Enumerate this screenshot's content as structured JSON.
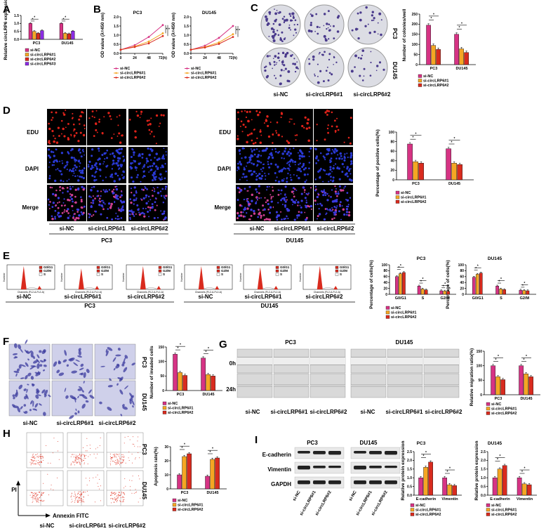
{
  "panels": {
    "a": "A",
    "b": "B",
    "c": "C",
    "d": "D",
    "e": "E",
    "f": "F",
    "g": "G",
    "h": "H",
    "i": "I"
  },
  "colors": {
    "si_nc": "#d63384",
    "si1": "#f5a623",
    "si2": "#d92b1e",
    "si3": "#8a2be2"
  },
  "legend": {
    "si_nc": "si-NC",
    "si1": "si-circLRP6#1",
    "si2": "si-circLRP6#2",
    "si3": "si-circLRP6#3"
  },
  "cells": {
    "pc3": "PC3",
    "du145": "DU145"
  },
  "stars": "*",
  "panel_a": {
    "ylabel": "Relative circLRP6\nexpression"
  },
  "panel_b": {
    "ylabel": "OD value (λ=450 nm)",
    "x_ticks": [
      "0",
      "24",
      "48",
      "72(h)"
    ]
  },
  "panel_c": {
    "ylabel": "Number of colonies/well"
  },
  "panel_d": {
    "rows": [
      "EDU",
      "DAPI",
      "Merge"
    ],
    "ylabel": "Percentage of positive cells(%)"
  },
  "panel_e": {
    "ylabel": "Percentage of cells(%)",
    "groups": [
      "G0/G1",
      "S",
      "G2/M"
    ],
    "flow_legend": [
      "G0/G1",
      "G2/M",
      "S"
    ],
    "xaxis_label": "Channels (FL2-A-FL2-A)",
    "yaxis_label": "Number"
  },
  "panel_f": {
    "ylabel": "Number of invaded cells"
  },
  "panel_g": {
    "times": [
      "0h",
      "24h"
    ],
    "ylabel": "Relative migration ratio(%)"
  },
  "panel_h": {
    "ylabel": "Apoptosis rate(%)",
    "pi": "PI",
    "annexin": "Annexin FITC"
  },
  "panel_i": {
    "proteins": [
      "E-cadherin",
      "Vimentin",
      "GAPDH"
    ],
    "ylabel": "Relative protein expression",
    "groups": [
      "E-cadherin",
      "Vimentin"
    ]
  },
  "chart_data": [
    {
      "id": "A",
      "type": "bar",
      "categories": [
        "PC3",
        "DU145"
      ],
      "ylim": [
        0,
        1.5
      ],
      "yticks": [
        "0.0",
        "0.5",
        "1.0",
        "1.5"
      ],
      "series": [
        {
          "name": "si-NC",
          "values": [
            1.0,
            1.0
          ]
        },
        {
          "name": "si-circLRP6#1",
          "values": [
            0.5,
            0.38
          ]
        },
        {
          "name": "si-circLRP6#2",
          "values": [
            0.38,
            0.35
          ]
        },
        {
          "name": "si-circLRP6#3",
          "values": [
            0.55,
            0.52
          ]
        }
      ]
    },
    {
      "id": "B-PC3",
      "type": "line",
      "title": "PC3",
      "x": [
        0,
        24,
        48,
        72
      ],
      "ylim": [
        0,
        2.0
      ],
      "yticks": [
        "0.0",
        "0.5",
        "1.0",
        "1.5",
        "2.0"
      ],
      "series": [
        {
          "name": "si-NC",
          "values": [
            0.2,
            0.45,
            0.9,
            1.55
          ]
        },
        {
          "name": "si-circLRP6#1",
          "values": [
            0.2,
            0.38,
            0.65,
            1.1
          ]
        },
        {
          "name": "si-circLRP6#2",
          "values": [
            0.2,
            0.35,
            0.55,
            0.95
          ]
        }
      ]
    },
    {
      "id": "B-DU145",
      "type": "line",
      "title": "DU145",
      "x": [
        0,
        24,
        48,
        72
      ],
      "ylim": [
        0,
        2.0
      ],
      "yticks": [
        "0.0",
        "0.5",
        "1.0",
        "1.5",
        "2.0"
      ],
      "series": [
        {
          "name": "si-NC",
          "values": [
            0.2,
            0.42,
            0.85,
            1.5
          ]
        },
        {
          "name": "si-circLRP6#1",
          "values": [
            0.2,
            0.35,
            0.6,
            1.05
          ]
        },
        {
          "name": "si-circLRP6#2",
          "values": [
            0.2,
            0.32,
            0.52,
            0.9
          ]
        }
      ]
    },
    {
      "id": "C",
      "type": "bar",
      "categories": [
        "PC3",
        "DU145"
      ],
      "ylim": [
        0,
        250
      ],
      "yticks": [
        "0",
        "50",
        "100",
        "150",
        "200",
        "250"
      ],
      "series": [
        {
          "name": "si-NC",
          "values": [
            195,
            150
          ]
        },
        {
          "name": "si-circLRP6#1",
          "values": [
            95,
            78
          ]
        },
        {
          "name": "si-circLRP6#2",
          "values": [
            75,
            60
          ]
        }
      ]
    },
    {
      "id": "D",
      "type": "bar",
      "categories": [
        "PC3",
        "DU145"
      ],
      "ylim": [
        0,
        100
      ],
      "yticks": [
        "0",
        "20",
        "40",
        "60",
        "80",
        "100"
      ],
      "series": [
        {
          "name": "si-NC",
          "values": [
            75,
            65
          ]
        },
        {
          "name": "si-circLRP6#1",
          "values": [
            38,
            35
          ]
        },
        {
          "name": "si-circLRP6#2",
          "values": [
            35,
            32
          ]
        }
      ]
    },
    {
      "id": "E-PC3",
      "type": "bar",
      "title": "PC3",
      "categories": [
        "G0/G1",
        "S",
        "G2/M"
      ],
      "ylim": [
        0,
        100
      ],
      "yticks": [
        "0",
        "20",
        "40",
        "60",
        "80",
        "100"
      ],
      "series": [
        {
          "name": "si-NC",
          "values": [
            60,
            28,
            12
          ]
        },
        {
          "name": "si-circLRP6#1",
          "values": [
            70,
            18,
            11
          ]
        },
        {
          "name": "si-circLRP6#2",
          "values": [
            74,
            15,
            10
          ]
        }
      ]
    },
    {
      "id": "E-DU145",
      "type": "bar",
      "title": "DU145",
      "categories": [
        "G0/G1",
        "S",
        "G2/M"
      ],
      "ylim": [
        0,
        100
      ],
      "yticks": [
        "0",
        "20",
        "40",
        "60",
        "80",
        "100"
      ],
      "series": [
        {
          "name": "si-NC",
          "values": [
            58,
            28,
            14
          ]
        },
        {
          "name": "si-circLRP6#1",
          "values": [
            68,
            18,
            13
          ]
        },
        {
          "name": "si-circLRP6#2",
          "values": [
            72,
            16,
            12
          ]
        }
      ]
    },
    {
      "id": "F",
      "type": "bar",
      "categories": [
        "PC3",
        "DU145"
      ],
      "ylim": [
        0,
        150
      ],
      "yticks": [
        "0",
        "50",
        "100",
        "150"
      ],
      "series": [
        {
          "name": "si-NC",
          "values": [
            125,
            112
          ]
        },
        {
          "name": "si-circLRP6#1",
          "values": [
            62,
            55
          ]
        },
        {
          "name": "si-circLRP6#2",
          "values": [
            52,
            50
          ]
        }
      ]
    },
    {
      "id": "G",
      "type": "bar",
      "categories": [
        "PC3",
        "DU145"
      ],
      "ylim": [
        0,
        150
      ],
      "yticks": [
        "0",
        "50",
        "100",
        "150"
      ],
      "series": [
        {
          "name": "si-NC",
          "values": [
            100,
            100
          ]
        },
        {
          "name": "si-circLRP6#1",
          "values": [
            62,
            72
          ]
        },
        {
          "name": "si-circLRP6#2",
          "values": [
            52,
            62
          ]
        }
      ]
    },
    {
      "id": "H",
      "type": "bar",
      "categories": [
        "PC3",
        "DU145"
      ],
      "ylim": [
        0,
        30
      ],
      "yticks": [
        "0",
        "10",
        "20",
        "30"
      ],
      "series": [
        {
          "name": "si-NC",
          "values": [
            10,
            9
          ]
        },
        {
          "name": "si-circLRP6#1",
          "values": [
            23,
            21
          ]
        },
        {
          "name": "si-circLRP6#2",
          "values": [
            25,
            22
          ]
        }
      ]
    },
    {
      "id": "I-PC3",
      "type": "bar",
      "title": "PC3",
      "categories": [
        "E-cadherin",
        "Vimentin"
      ],
      "ylim": [
        0,
        2.5
      ],
      "yticks": [
        "0.0",
        "0.5",
        "1.0",
        "1.5",
        "2.0",
        "2.5"
      ],
      "series": [
        {
          "name": "si-NC",
          "values": [
            1.0,
            1.0
          ]
        },
        {
          "name": "si-circLRP6#1",
          "values": [
            1.6,
            0.6
          ]
        },
        {
          "name": "si-circLRP6#2",
          "values": [
            1.9,
            0.55
          ]
        }
      ]
    },
    {
      "id": "I-DU145",
      "type": "bar",
      "title": "DU145",
      "categories": [
        "E-cadherin",
        "Vimentin"
      ],
      "ylim": [
        0,
        2.5
      ],
      "yticks": [
        "0.0",
        "0.5",
        "1.0",
        "1.5",
        "2.0",
        "2.5"
      ],
      "series": [
        {
          "name": "si-NC",
          "values": [
            1.0,
            1.0
          ]
        },
        {
          "name": "si-circLRP6#1",
          "values": [
            1.5,
            0.65
          ]
        },
        {
          "name": "si-circLRP6#2",
          "values": [
            1.7,
            0.6
          ]
        }
      ]
    }
  ]
}
